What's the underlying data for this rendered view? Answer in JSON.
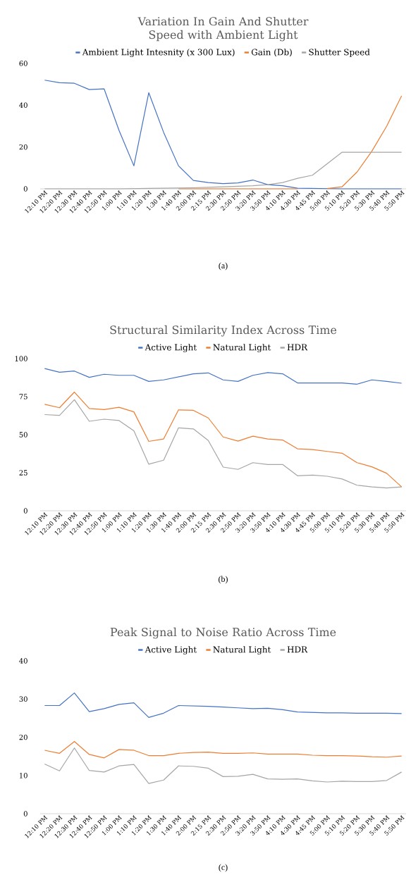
{
  "chart_data": [
    {
      "type": "line",
      "title": "Variation In Gain And Shutter Speed with Ambient Light",
      "annotations": [
        "(a)"
      ],
      "categories": [
        "12:10 PM",
        "12:20 PM",
        "12:30 PM",
        "12:40 PM",
        "12:50 PM",
        "1:00 PM",
        "1:10 PM",
        "1:20 PM",
        "1:30 PM",
        "1:40 PM",
        "2:00 PM",
        "2:15 PM",
        "2:30 PM",
        "2:50 PM",
        "3:20 PM",
        "3:50 PM",
        "4:10 PM",
        "4:30 PM",
        "4:45 PM",
        "5:00 PM",
        "5:10 PM",
        "5:20 PM",
        "5:30 PM",
        "5:40 PM",
        "5:50 PM"
      ],
      "series": [
        {
          "name": "Ambient Light Intesnity (x 300 Lux)",
          "color": "#4472c4",
          "values": [
            52,
            50.8,
            50.5,
            47.5,
            47.8,
            28,
            11,
            46,
            27,
            11,
            4,
            3,
            2.5,
            2.8,
            4.2,
            2,
            1.5,
            0.3,
            0.2,
            0.1,
            0,
            0,
            0,
            0,
            0
          ]
        },
        {
          "name": "Gain (Db)",
          "color": "#ed7d31",
          "values": [
            null,
            null,
            null,
            null,
            null,
            null,
            null,
            null,
            null,
            0,
            0,
            0,
            0,
            0,
            0,
            0,
            0,
            0,
            null,
            0.1,
            1,
            8,
            18,
            30,
            44.5
          ]
        },
        {
          "name": "Shutter Speed",
          "color": "#a5a5a5",
          "values": [
            0,
            0,
            0,
            0,
            0,
            0,
            0.1,
            0.2,
            0.3,
            0.4,
            0.5,
            0.7,
            1,
            1.2,
            1.5,
            2,
            3,
            5,
            6.5,
            12,
            17.5,
            17.5,
            17.5,
            17.5,
            17.5
          ]
        }
      ],
      "ylim": [
        0,
        60
      ],
      "yticks": [
        0,
        20,
        40,
        60
      ],
      "grid": false,
      "legend": "top",
      "marker": "none",
      "line_style": "solid"
    },
    {
      "type": "line",
      "title": "Structural Similarity Index Across Time",
      "annotations": [
        "(b)"
      ],
      "categories": [
        "12:10 PM",
        "12:20 PM",
        "12:30 PM",
        "12:40 PM",
        "12:50 PM",
        "1:00 PM",
        "1:10 PM",
        "1:20 PM",
        "1:30 PM",
        "1:40 PM",
        "2:00 PM",
        "2:15 PM",
        "2:30 PM",
        "2:50 PM",
        "3:20 PM",
        "3:50 PM",
        "4:10 PM",
        "4:30 PM",
        "4:45 PM",
        "5:00 PM",
        "5:10 PM",
        "5:20 PM",
        "5:30 PM",
        "5:40 PM",
        "5:50 PM"
      ],
      "series": [
        {
          "name": "Active Light",
          "color": "#4472c4",
          "values": [
            93.5,
            91,
            91.8,
            87.7,
            89.7,
            89,
            89,
            85,
            86,
            88,
            90,
            90.6,
            86,
            85,
            89,
            90.8,
            90,
            84,
            84,
            84,
            84,
            83.2,
            86,
            85,
            83.8
          ]
        },
        {
          "name": "Natural Light",
          "color": "#ed7d31",
          "values": [
            70,
            67.7,
            78,
            67.2,
            66.5,
            68,
            65,
            45.6,
            47.2,
            66.3,
            66,
            61,
            48.5,
            45.8,
            49,
            47.2,
            46.5,
            40.7,
            40.2,
            39,
            37.8,
            31.6,
            28.9,
            24.6,
            15.7
          ]
        },
        {
          "name": "HDR",
          "color": "#a5a5a5",
          "values": [
            63.2,
            62.7,
            73,
            58.8,
            60.2,
            59.3,
            52.5,
            30.6,
            33.2,
            54.5,
            53.8,
            46.2,
            28.7,
            27.2,
            31.6,
            30.4,
            30.4,
            23,
            23.4,
            22.7,
            20.9,
            16.8,
            15.7,
            15,
            15.7
          ]
        }
      ],
      "ylim": [
        0,
        100
      ],
      "yticks": [
        0,
        25,
        50,
        75,
        100
      ],
      "grid": false,
      "legend": "top",
      "marker": "none",
      "line_style": "solid"
    },
    {
      "type": "line",
      "title": "Peak Signal to Noise Ratio Across Time",
      "annotations": [
        "(c)"
      ],
      "categories": [
        "12:10 PM",
        "12:20 PM",
        "12:30 PM",
        "12:40 PM",
        "12:50 PM",
        "1:00 PM",
        "1:10 PM",
        "1:20 PM",
        "1:30 PM",
        "1:40 PM",
        "2:00 PM",
        "2:15 PM",
        "2:30 PM",
        "2:50 PM",
        "3:20 PM",
        "3:50 PM",
        "4:10 PM",
        "4:30 PM",
        "4:45 PM",
        "5:00 PM",
        "5:10 PM",
        "5:20 PM",
        "5:30 PM",
        "5:40 PM",
        "5:50 PM"
      ],
      "series": [
        {
          "name": "Active Light",
          "color": "#4472c4",
          "values": [
            28.3,
            28.3,
            31.6,
            26.7,
            27.5,
            28.6,
            29,
            25.2,
            26.3,
            28.3,
            28.2,
            28.1,
            27.9,
            27.7,
            27.5,
            27.6,
            27.2,
            26.6,
            26.5,
            26.4,
            26.4,
            26.3,
            26.3,
            26.3,
            26.2
          ]
        },
        {
          "name": "Natural Light",
          "color": "#ed7d31",
          "values": [
            16.6,
            15.8,
            18.9,
            15.5,
            14.6,
            16.8,
            16.6,
            15.2,
            15.2,
            15.8,
            16,
            16.1,
            15.8,
            15.8,
            15.9,
            15.6,
            15.6,
            15.6,
            15.3,
            15.2,
            15.2,
            15.1,
            14.9,
            14.8,
            15.1
          ]
        },
        {
          "name": "HDR",
          "color": "#a5a5a5",
          "values": [
            13,
            11.2,
            17.2,
            11.3,
            10.9,
            12.5,
            12.9,
            7.9,
            8.8,
            12.5,
            12.4,
            11.9,
            9.7,
            9.8,
            10.3,
            9.1,
            9.0,
            9.1,
            8.6,
            8.3,
            8.5,
            8.4,
            8.4,
            8.7,
            10.9
          ]
        }
      ],
      "ylim": [
        0,
        40
      ],
      "yticks": [
        0,
        10,
        20,
        30,
        40
      ],
      "grid": false,
      "legend": "top",
      "marker": "none",
      "line_style": "solid"
    }
  ]
}
